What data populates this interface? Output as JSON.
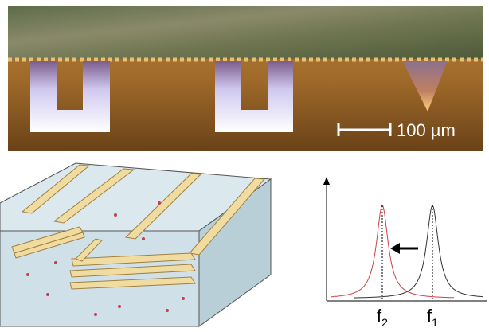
{
  "micrograph": {
    "scale_bar": {
      "label": "100 µm"
    }
  },
  "spectrum": {
    "peaks": [
      {
        "base": "f",
        "sub": "2"
      },
      {
        "base": "f",
        "sub": "1"
      }
    ]
  }
}
